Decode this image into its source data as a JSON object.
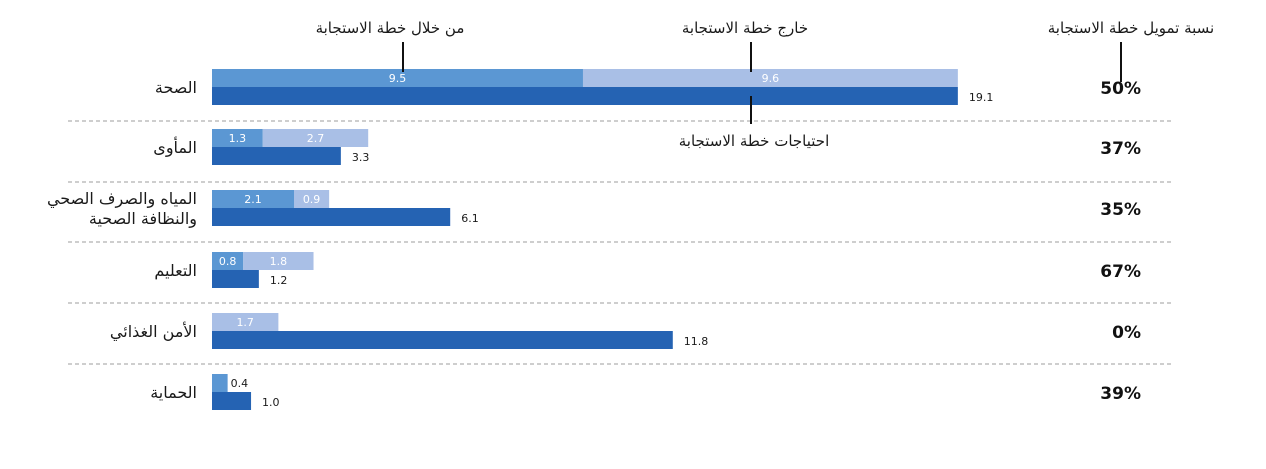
{
  "chart_data": {
    "type": "bar",
    "orientation": "horizontal",
    "direction": "rtl",
    "legend": {
      "within": "من خلال خطة الاستجابة",
      "outside": "خارج خطة الاستجابة",
      "needs": "احتياجات خطة الاستجابة",
      "percent_header": "نسبة تمويل خطة الاستجابة"
    },
    "colors": {
      "within": "#5b97d3",
      "outside": "#a9bfe6",
      "needs": "#2563b3",
      "separator": "#b0b0b0"
    },
    "categories": [
      {
        "label": [
          "الصحة"
        ],
        "within": 9.5,
        "outside": 9.6,
        "needs": 19.1,
        "within_text": "9.5",
        "outside_text": "9.6",
        "needs_text": "19.1",
        "pct": "50%"
      },
      {
        "label": [
          "المأوى"
        ],
        "within": 1.3,
        "outside": 2.7,
        "needs": 3.3,
        "within_text": "1.3",
        "outside_text": "2.7",
        "needs_text": "3.3",
        "pct": "37%"
      },
      {
        "label": [
          "المياه والصرف الصحي",
          "والنظافة الصحية"
        ],
        "within": 2.1,
        "outside": 0.9,
        "needs": 6.1,
        "within_text": "2.1",
        "outside_text": "0.9",
        "needs_text": "6.1",
        "pct": "35%"
      },
      {
        "label": [
          "التعليم"
        ],
        "within": 0.8,
        "outside": 1.8,
        "needs": 1.2,
        "within_text": "0.8",
        "outside_text": "1.8",
        "needs_text": "1.2",
        "pct": "67%"
      },
      {
        "label": [
          "الأمن الغذائي"
        ],
        "within": 0,
        "outside": 1.7,
        "needs": 11.8,
        "within_text": "",
        "outside_text": "1.7",
        "needs_text": "11.8",
        "pct": "0%"
      },
      {
        "label": [
          "الحماية"
        ],
        "within": 0.4,
        "outside": 0,
        "needs": 1.0,
        "within_text": "0.4",
        "outside_text": "",
        "needs_text": "1.0",
        "pct": "39%"
      }
    ]
  }
}
